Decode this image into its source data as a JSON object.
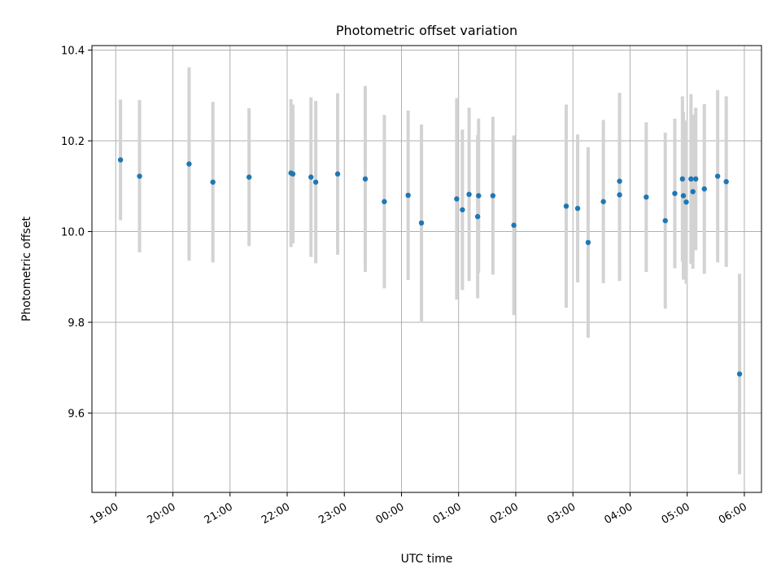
{
  "chart_data": {
    "type": "scatter",
    "title": "Photometric offset variation",
    "xlabel": "UTC time",
    "ylabel": "Photometric offset",
    "x_ticks": [
      "19:00",
      "20:00",
      "21:00",
      "22:00",
      "23:00",
      "00:00",
      "01:00",
      "02:00",
      "03:00",
      "04:00",
      "05:00",
      "06:00"
    ],
    "y_ticks": [
      "9.6",
      "9.8",
      "10.0",
      "10.2",
      "10.4"
    ],
    "y_tick_values": [
      9.6,
      9.8,
      10.0,
      10.2,
      10.4
    ],
    "xlim": [
      "18:35",
      "06:18"
    ],
    "ylim": [
      9.425,
      10.41
    ],
    "grid": true,
    "colors": {
      "points": "#1f77b4",
      "errorbars": "#d3d3d3",
      "grid": "#b0b0b0"
    },
    "points": [
      {
        "time": "19:05",
        "y": 10.158,
        "err": 0.133
      },
      {
        "time": "19:25",
        "y": 10.122,
        "err": 0.168
      },
      {
        "time": "20:17",
        "y": 10.149,
        "err": 0.213
      },
      {
        "time": "20:42",
        "y": 10.109,
        "err": 0.177
      },
      {
        "time": "21:20",
        "y": 10.12,
        "err": 0.152
      },
      {
        "time": "22:04",
        "y": 10.129,
        "err": 0.163
      },
      {
        "time": "22:06",
        "y": 10.127,
        "err": 0.153
      },
      {
        "time": "22:25",
        "y": 10.12,
        "err": 0.176
      },
      {
        "time": "22:30",
        "y": 10.109,
        "err": 0.179
      },
      {
        "time": "22:53",
        "y": 10.127,
        "err": 0.178
      },
      {
        "time": "23:22",
        "y": 10.116,
        "err": 0.205
      },
      {
        "time": "23:42",
        "y": 10.066,
        "err": 0.191
      },
      {
        "time": "00:07",
        "y": 10.08,
        "err": 0.187
      },
      {
        "time": "00:21",
        "y": 10.019,
        "err": 0.217
      },
      {
        "time": "00:58",
        "y": 10.072,
        "err": 0.222
      },
      {
        "time": "01:04",
        "y": 10.048,
        "err": 0.177
      },
      {
        "time": "01:11",
        "y": 10.082,
        "err": 0.191
      },
      {
        "time": "01:20",
        "y": 10.033,
        "err": 0.18
      },
      {
        "time": "01:21",
        "y": 10.079,
        "err": 0.17
      },
      {
        "time": "01:36",
        "y": 10.079,
        "err": 0.174
      },
      {
        "time": "01:58",
        "y": 10.014,
        "err": 0.198
      },
      {
        "time": "02:53",
        "y": 10.056,
        "err": 0.224
      },
      {
        "time": "03:05",
        "y": 10.051,
        "err": 0.163
      },
      {
        "time": "03:16",
        "y": 9.976,
        "err": 0.21
      },
      {
        "time": "03:32",
        "y": 10.066,
        "err": 0.18
      },
      {
        "time": "03:49",
        "y": 10.081,
        "err": 0.19
      },
      {
        "time": "03:49",
        "y": 10.111,
        "err": 0.195
      },
      {
        "time": "04:17",
        "y": 10.076,
        "err": 0.165
      },
      {
        "time": "04:37",
        "y": 10.024,
        "err": 0.194
      },
      {
        "time": "04:47",
        "y": 10.084,
        "err": 0.165
      },
      {
        "time": "04:55",
        "y": 10.116,
        "err": 0.182
      },
      {
        "time": "04:56",
        "y": 10.079,
        "err": 0.185
      },
      {
        "time": "04:59",
        "y": 10.065,
        "err": 0.18
      },
      {
        "time": "05:04",
        "y": 10.116,
        "err": 0.187
      },
      {
        "time": "05:06",
        "y": 10.088,
        "err": 0.17
      },
      {
        "time": "05:09",
        "y": 10.116,
        "err": 0.157
      },
      {
        "time": "05:18",
        "y": 10.094,
        "err": 0.187
      },
      {
        "time": "05:32",
        "y": 10.122,
        "err": 0.19
      },
      {
        "time": "05:41",
        "y": 10.11,
        "err": 0.188
      },
      {
        "time": "05:55",
        "y": 9.686,
        "err": 0.221
      }
    ]
  }
}
